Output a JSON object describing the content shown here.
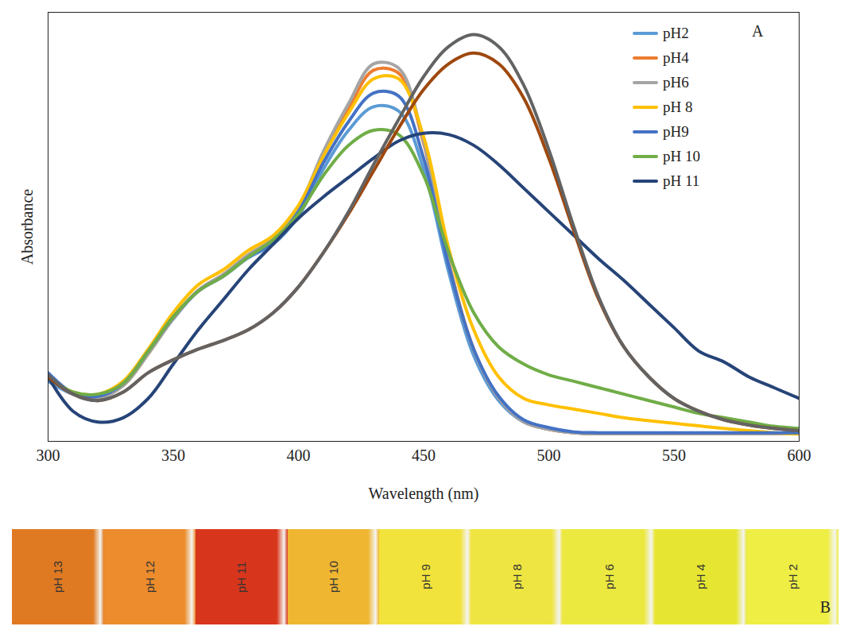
{
  "chart_data": {
    "type": "line",
    "x_label": "Wavelength (nm)",
    "y_label": "Absorbance",
    "panel": "A",
    "x": [
      300,
      310,
      320,
      330,
      340,
      350,
      360,
      370,
      380,
      390,
      400,
      410,
      420,
      430,
      440,
      450,
      460,
      470,
      480,
      490,
      500,
      510,
      520,
      530,
      540,
      550,
      560,
      570,
      580,
      590,
      600
    ],
    "xlim": [
      300,
      600
    ],
    "xticks": [
      300,
      350,
      400,
      450,
      500,
      550,
      600
    ],
    "ylim": [
      0,
      1
    ],
    "yticks": [],
    "tick_labels": "x",
    "legend": "top-right",
    "series": [
      {
        "name": "pH2",
        "color": "#5b9bd5",
        "values": [
          0.14,
          0.11,
          0.1,
          0.13,
          0.205,
          0.285,
          0.35,
          0.385,
          0.428,
          0.46,
          0.525,
          0.635,
          0.725,
          0.78,
          0.77,
          0.635,
          0.395,
          0.2,
          0.095,
          0.045,
          0.028,
          0.02,
          0.018,
          0.018,
          0.018,
          0.018,
          0.018,
          0.018,
          0.018,
          0.018,
          0.018
        ]
      },
      {
        "name": "pH4",
        "color": "#ed7d31",
        "values": [
          0.157,
          0.111,
          0.102,
          0.13,
          0.204,
          0.287,
          0.352,
          0.389,
          0.435,
          0.472,
          0.54,
          0.668,
          0.775,
          0.865,
          0.858,
          0.695,
          0.42,
          0.215,
          0.102,
          0.046,
          0.028,
          0.02,
          0.018,
          0.018,
          0.018,
          0.018,
          0.018,
          0.018,
          0.018,
          0.018,
          0.018
        ]
      },
      {
        "name": "pH6",
        "color": "#a5a5a5",
        "values": [
          0.157,
          0.111,
          0.102,
          0.13,
          0.204,
          0.287,
          0.352,
          0.389,
          0.435,
          0.472,
          0.546,
          0.676,
          0.787,
          0.88,
          0.87,
          0.7,
          0.417,
          0.213,
          0.102,
          0.046,
          0.028,
          0.02,
          0.018,
          0.018,
          0.018,
          0.018,
          0.018,
          0.018,
          0.018,
          0.018,
          0.018
        ]
      },
      {
        "name": "pH 8",
        "color": "#ffc000",
        "values": [
          0.15,
          0.115,
          0.11,
          0.14,
          0.215,
          0.3,
          0.365,
          0.4,
          0.445,
          0.48,
          0.55,
          0.665,
          0.765,
          0.845,
          0.845,
          0.71,
          0.45,
          0.26,
          0.15,
          0.1,
          0.085,
          0.075,
          0.065,
          0.055,
          0.048,
          0.042,
          0.036,
          0.03,
          0.025,
          0.02,
          0.017
        ]
      },
      {
        "name": "pH9",
        "color": "#4472c4",
        "values": [
          0.16,
          0.112,
          0.105,
          0.135,
          0.21,
          0.29,
          0.35,
          0.385,
          0.43,
          0.465,
          0.535,
          0.65,
          0.745,
          0.812,
          0.805,
          0.66,
          0.41,
          0.215,
          0.105,
          0.05,
          0.032,
          0.022,
          0.02,
          0.02,
          0.02,
          0.02,
          0.02,
          0.02,
          0.02,
          0.02,
          0.02
        ]
      },
      {
        "name": "pH 10",
        "color": "#70ad47",
        "values": [
          0.15,
          0.115,
          0.11,
          0.135,
          0.21,
          0.29,
          0.35,
          0.385,
          0.43,
          0.47,
          0.53,
          0.62,
          0.69,
          0.725,
          0.715,
          0.62,
          0.44,
          0.3,
          0.22,
          0.18,
          0.155,
          0.14,
          0.125,
          0.11,
          0.095,
          0.08,
          0.065,
          0.055,
          0.045,
          0.035,
          0.03
        ]
      },
      {
        "name": "pH 11",
        "color": "#264478",
        "values": [
          0.15,
          0.07,
          0.045,
          0.055,
          0.1,
          0.18,
          0.26,
          0.33,
          0.4,
          0.46,
          0.52,
          0.57,
          0.615,
          0.66,
          0.7,
          0.718,
          0.715,
          0.69,
          0.645,
          0.59,
          0.535,
          0.48,
          0.425,
          0.375,
          0.32,
          0.265,
          0.21,
          0.185,
          0.15,
          0.125,
          0.1
        ]
      },
      {
        "name": null,
        "color": "#9e480e",
        "values": [
          0.15,
          0.11,
          0.095,
          0.115,
          0.16,
          0.19,
          0.215,
          0.235,
          0.26,
          0.3,
          0.36,
          0.44,
          0.53,
          0.63,
          0.73,
          0.82,
          0.88,
          0.905,
          0.88,
          0.8,
          0.66,
          0.49,
          0.33,
          0.22,
          0.15,
          0.1,
          0.07,
          0.05,
          0.038,
          0.03,
          0.025
        ]
      },
      {
        "name": null,
        "color": "#636363",
        "values": [
          0.155,
          0.11,
          0.095,
          0.115,
          0.16,
          0.19,
          0.215,
          0.235,
          0.26,
          0.3,
          0.36,
          0.44,
          0.535,
          0.645,
          0.75,
          0.85,
          0.92,
          0.948,
          0.92,
          0.83,
          0.68,
          0.5,
          0.335,
          0.22,
          0.15,
          0.1,
          0.07,
          0.05,
          0.038,
          0.03,
          0.025
        ]
      }
    ]
  },
  "photo": {
    "panel": "B",
    "vials": [
      {
        "label": "pH 13",
        "color": "#e07a22"
      },
      {
        "label": "pH 12",
        "color": "#ec8c2c"
      },
      {
        "label": "pH 11",
        "color": "#d8361c"
      },
      {
        "label": "pH 10",
        "color": "#efb632"
      },
      {
        "label": "pH 9",
        "color": "#f1e23c"
      },
      {
        "label": "pH 8",
        "color": "#efe542"
      },
      {
        "label": "pH 6",
        "color": "#ebe840"
      },
      {
        "label": "pH 4",
        "color": "#e6e632"
      },
      {
        "label": "pH 2",
        "color": "#eeee44"
      }
    ]
  }
}
